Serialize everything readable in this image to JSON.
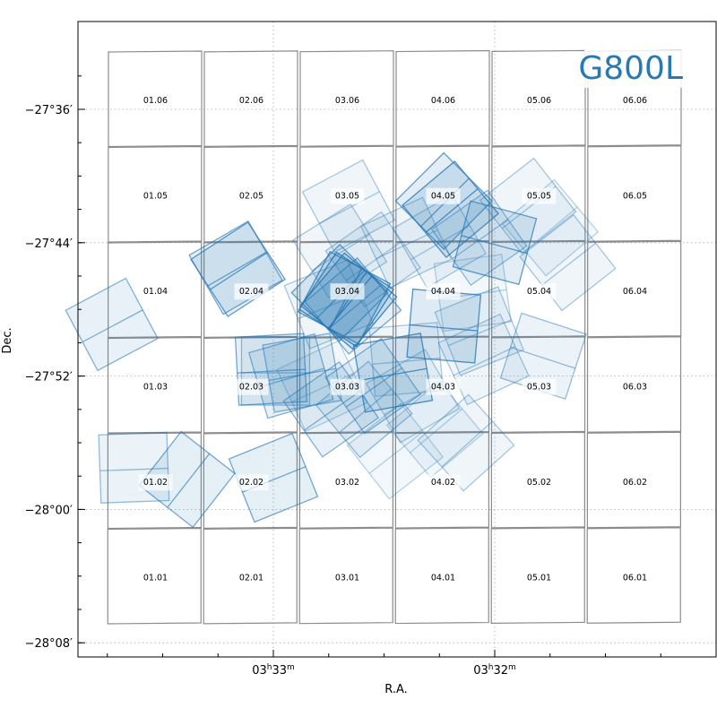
{
  "chart_data": {
    "type": "scatter",
    "title": "G800L",
    "xlabel": "R.A.",
    "ylabel": "Dec.",
    "accent_color": "#2878b5",
    "tile_color": "#8c8c8c",
    "x_ticks": [
      {
        "ra_min": 33,
        "h": "03",
        "m": "33"
      },
      {
        "ra_min": 32,
        "h": "03",
        "m": "32"
      }
    ],
    "y_ticks": [
      {
        "arcmin": -36,
        "label": "−27°36′"
      },
      {
        "arcmin": -44,
        "label": "−27°44′"
      },
      {
        "arcmin": -52,
        "label": "−27°52′"
      },
      {
        "arcmin": -60,
        "label": "−28°00′"
      },
      {
        "arcmin": -68,
        "label": "−28°08′"
      }
    ],
    "x_range_ra_min": [
      33.87,
      31.0
    ],
    "y_range_arcmin": [
      -67.3,
      -32.5
    ],
    "grid": true,
    "tiles": {
      "columns": [
        "01",
        "02",
        "03",
        "04",
        "05",
        "06"
      ],
      "rows": [
        "06",
        "05",
        "04",
        "03",
        "02",
        "01"
      ],
      "labels": [
        [
          "01.06",
          "02.06",
          "03.06",
          "04.06",
          "05.06",
          "06.06"
        ],
        [
          "01.05",
          "02.05",
          "03.05",
          "04.05",
          "05.05",
          "06.05"
        ],
        [
          "01.04",
          "02.04",
          "03.04",
          "04.04",
          "05.04",
          "06.04"
        ],
        [
          "01.03",
          "02.03",
          "03.03",
          "04.03",
          "05.03",
          "06.03"
        ],
        [
          "01.02",
          "02.02",
          "03.02",
          "04.02",
          "05.02",
          "06.02"
        ],
        [
          "01.01",
          "02.01",
          "03.01",
          "04.01",
          "05.01",
          "06.01"
        ]
      ]
    },
    "pointings": [
      {
        "ra_min": 33.16,
        "dec_arcmin": -45.6,
        "pa": 33,
        "opacity": 0.45
      },
      {
        "ra_min": 33.17,
        "dec_arcmin": -45.5,
        "pa": 30,
        "opacity": 0.4
      },
      {
        "ra_min": 33.73,
        "dec_arcmin": -48.9,
        "pa": 28,
        "opacity": 0.35
      },
      {
        "ra_min": 33.01,
        "dec_arcmin": -51.6,
        "pa": 3,
        "opacity": 0.4
      },
      {
        "ra_min": 32.99,
        "dec_arcmin": -51.7,
        "pa": 0,
        "opacity": 0.3
      },
      {
        "ra_min": 32.92,
        "dec_arcmin": -52.0,
        "pa": 16,
        "opacity": 0.35
      },
      {
        "ra_min": 32.87,
        "dec_arcmin": -51.8,
        "pa": 10,
        "opacity": 0.35
      },
      {
        "ra_min": 33.63,
        "dec_arcmin": -57.5,
        "pa": 2,
        "opacity": 0.3
      },
      {
        "ra_min": 33.39,
        "dec_arcmin": -58.2,
        "pa": 52,
        "opacity": 0.4
      },
      {
        "ra_min": 33.0,
        "dec_arcmin": -58.1,
        "pa": 22,
        "opacity": 0.4
      },
      {
        "ra_min": 32.67,
        "dec_arcmin": -47.4,
        "pa": 57,
        "opacity": 0.55
      },
      {
        "ra_min": 32.66,
        "dec_arcmin": -47.5,
        "pa": 50,
        "opacity": 0.55
      },
      {
        "ra_min": 32.68,
        "dec_arcmin": -47.3,
        "pa": 62,
        "opacity": 0.5
      },
      {
        "ra_min": 32.7,
        "dec_arcmin": -47.0,
        "pa": 45,
        "opacity": 0.45
      },
      {
        "ra_min": 32.64,
        "dec_arcmin": -47.8,
        "pa": 40,
        "opacity": 0.4
      },
      {
        "ra_min": 32.7,
        "dec_arcmin": -44.5,
        "pa": 32,
        "opacity": 0.25
      },
      {
        "ra_min": 32.66,
        "dec_arcmin": -41.8,
        "pa": 28,
        "opacity": 0.25
      },
      {
        "ra_min": 32.75,
        "dec_arcmin": -47.7,
        "pa": 22,
        "opacity": 0.25
      },
      {
        "ra_min": 32.55,
        "dec_arcmin": -45.0,
        "pa": 35,
        "opacity": 0.25
      },
      {
        "ra_min": 32.2,
        "dec_arcmin": -42.0,
        "pa": 40,
        "opacity": 0.5
      },
      {
        "ra_min": 32.23,
        "dec_arcmin": -41.5,
        "pa": 45,
        "opacity": 0.45
      },
      {
        "ra_min": 32.0,
        "dec_arcmin": -44.0,
        "pa": -15,
        "opacity": 0.45
      },
      {
        "ra_min": 32.07,
        "dec_arcmin": -43.7,
        "pa": 35,
        "opacity": 0.3
      },
      {
        "ra_min": 32.25,
        "dec_arcmin": -43.9,
        "pa": 30,
        "opacity": 0.25
      },
      {
        "ra_min": 32.4,
        "dec_arcmin": -44.0,
        "pa": 25,
        "opacity": 0.25
      },
      {
        "ra_min": 32.1,
        "dec_arcmin": -47.0,
        "pa": 8,
        "opacity": 0.2
      },
      {
        "ra_min": 31.85,
        "dec_arcmin": -41.8,
        "pa": 38,
        "opacity": 0.25
      },
      {
        "ra_min": 31.75,
        "dec_arcmin": -43.1,
        "pa": 40,
        "opacity": 0.2
      },
      {
        "ra_min": 31.67,
        "dec_arcmin": -45.2,
        "pa": 38,
        "opacity": 0.25
      },
      {
        "ra_min": 32.23,
        "dec_arcmin": -49.0,
        "pa": -5,
        "opacity": 0.5
      },
      {
        "ra_min": 32.07,
        "dec_arcmin": -49.3,
        "pa": 22,
        "opacity": 0.25
      },
      {
        "ra_min": 32.05,
        "dec_arcmin": -51.0,
        "pa": 25,
        "opacity": 0.25
      },
      {
        "ra_min": 32.46,
        "dec_arcmin": -51.8,
        "pa": 10,
        "opacity": 0.5
      },
      {
        "ra_min": 32.4,
        "dec_arcmin": -51.0,
        "pa": 5,
        "opacity": 0.25
      },
      {
        "ra_min": 32.55,
        "dec_arcmin": -52.6,
        "pa": 35,
        "opacity": 0.35
      },
      {
        "ra_min": 32.59,
        "dec_arcmin": -54.0,
        "pa": 40,
        "opacity": 0.3
      },
      {
        "ra_min": 32.74,
        "dec_arcmin": -54.0,
        "pa": 35,
        "opacity": 0.35
      },
      {
        "ra_min": 32.37,
        "dec_arcmin": -53.2,
        "pa": 30,
        "opacity": 0.25
      },
      {
        "ra_min": 32.27,
        "dec_arcmin": -55.2,
        "pa": 40,
        "opacity": 0.2
      },
      {
        "ra_min": 32.13,
        "dec_arcmin": -56.0,
        "pa": 42,
        "opacity": 0.25
      },
      {
        "ra_min": 32.45,
        "dec_arcmin": -56.5,
        "pa": 38,
        "opacity": 0.2
      },
      {
        "ra_min": 32.78,
        "dec_arcmin": -52.6,
        "pa": 25,
        "opacity": 0.2
      },
      {
        "ra_min": 31.78,
        "dec_arcmin": -50.8,
        "pa": -18,
        "opacity": 0.3
      }
    ]
  }
}
